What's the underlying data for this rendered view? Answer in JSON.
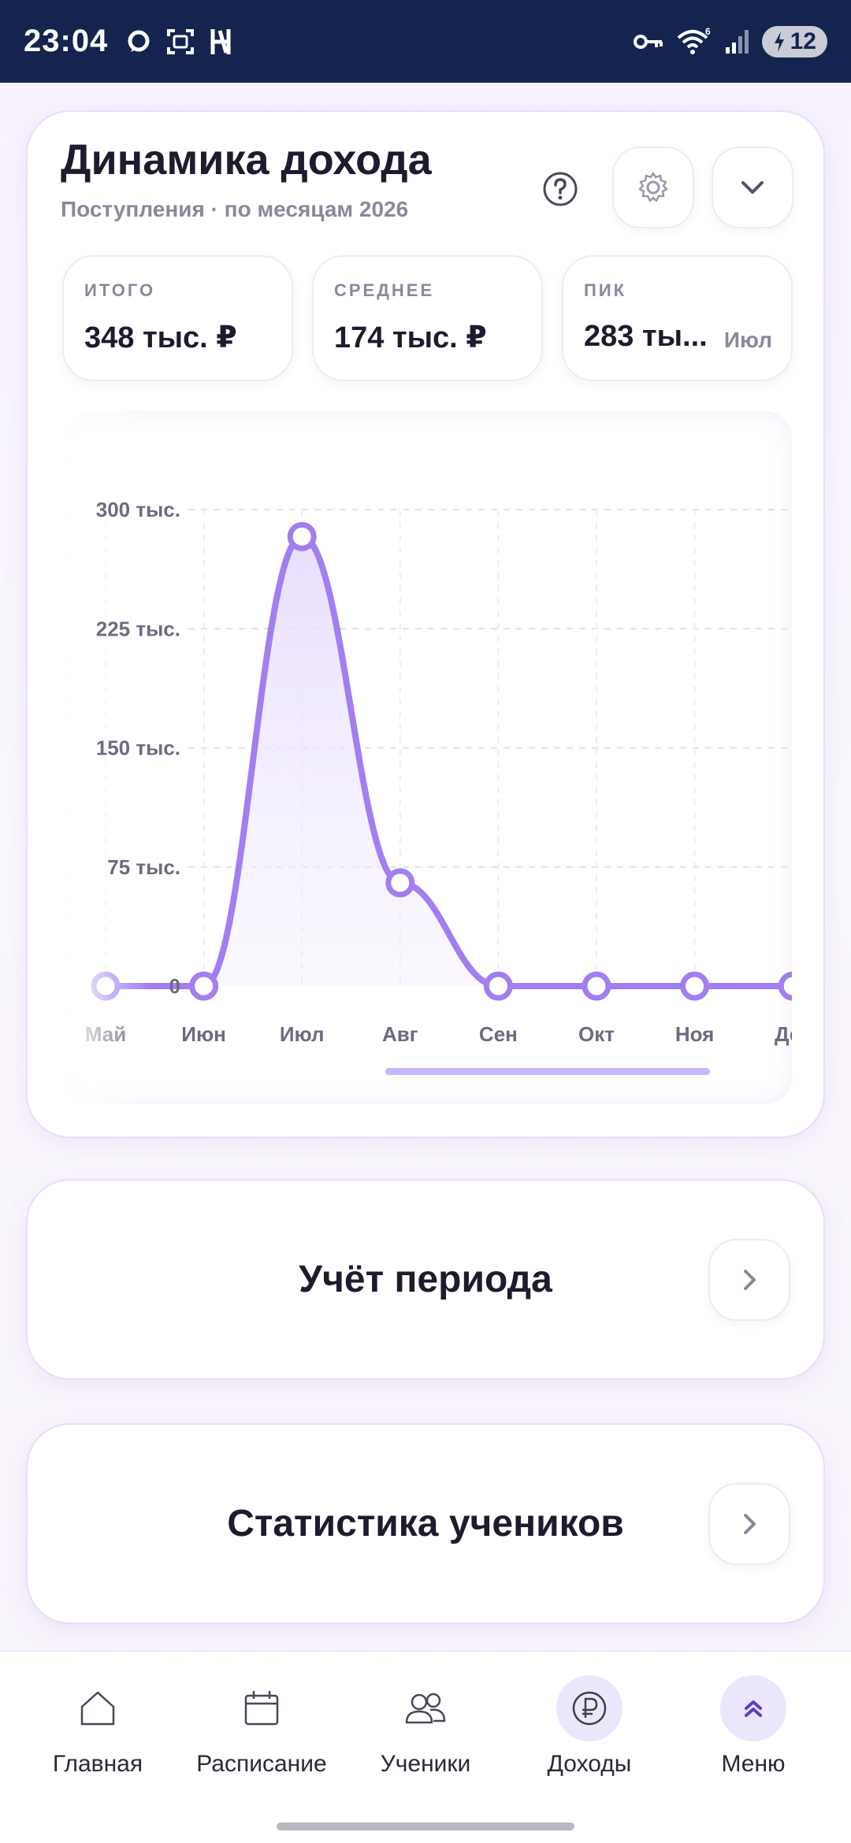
{
  "status_bar": {
    "time": "23:04",
    "battery": "12",
    "wifi_badge": "6"
  },
  "income": {
    "title": "Динамика дохода",
    "subtitle": "Поступления · по месяцам 2026",
    "stats": [
      {
        "label": "ИТОГО",
        "value": "348 тыс. ₽",
        "extra": ""
      },
      {
        "label": "СРЕДНЕЕ",
        "value": "174 тыс. ₽",
        "extra": ""
      },
      {
        "label": "ПИК",
        "value": "283 ты...",
        "extra": "Июл"
      }
    ],
    "icons": {
      "help": "question-circle-icon",
      "settings": "gear-icon",
      "collapse": "chevron-down-icon"
    }
  },
  "chart_data": {
    "type": "line",
    "categories": [
      "Май",
      "Июн",
      "Июл",
      "Авг",
      "Сен",
      "Окт",
      "Ноя",
      "Дек"
    ],
    "values": [
      0,
      0,
      283000,
      65000,
      0,
      0,
      0,
      0
    ],
    "ylim": [
      0,
      300000
    ],
    "yticks": [
      0,
      75000,
      150000,
      225000,
      300000
    ],
    "ytick_labels": [
      "0",
      "75 тыс.",
      "150 тыс.",
      "225 тыс.",
      "300 тыс."
    ],
    "grid": true,
    "color": "#a27ef0",
    "fill_color": "#ece4fd"
  },
  "sections": {
    "period": "Учёт периода",
    "students_stats": "Статистика учеников"
  },
  "bottom_nav": {
    "tabs": [
      {
        "label": "Главная",
        "icon": "home-icon",
        "active": false
      },
      {
        "label": "Расписание",
        "icon": "calendar-icon",
        "active": false
      },
      {
        "label": "Ученики",
        "icon": "users-icon",
        "active": false
      },
      {
        "label": "Доходы",
        "icon": "ruble-icon",
        "active": true
      },
      {
        "label": "Меню",
        "icon": "double-chevron-up-icon",
        "active": true
      }
    ]
  }
}
